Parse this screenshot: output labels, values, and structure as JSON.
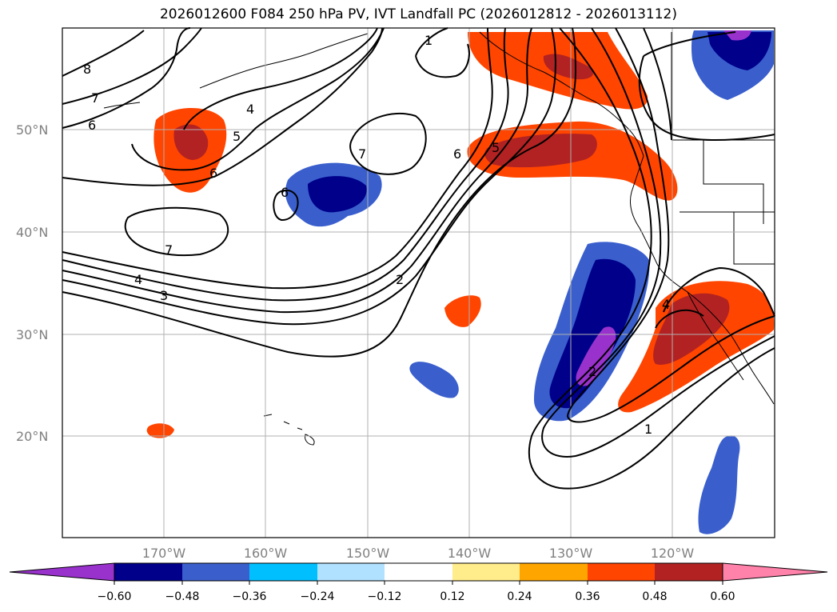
{
  "title": "2026012600 F084 250 hPa PV, IVT Landfall PC (2026012812 - 2026013112)",
  "map": {
    "lat_labels": [
      "50°N",
      "40°N",
      "30°N",
      "20°N"
    ],
    "lon_labels": [
      "170°W",
      "160°W",
      "150°W",
      "140°W",
      "130°W",
      "120°W"
    ],
    "contour_labels": [
      "8",
      "7",
      "6",
      "4",
      "5",
      "6",
      "7",
      "6",
      "7",
      "4",
      "3",
      "2",
      "1",
      "6",
      "5",
      "2",
      "4",
      "1"
    ],
    "fill_colors": {
      "neg_extreme": "#9932cc",
      "neg_060": "#00008b",
      "neg_048": "#3a5fcd",
      "neg_036": "#00bfff",
      "neg_024": "#b0e2ff",
      "pos_024": "#ffec8b",
      "pos_036": "#ffa500",
      "pos_048": "#ff4500",
      "pos_060": "#b22222",
      "pos_extreme": "#ff82ab"
    }
  },
  "colorbar": {
    "ticks": [
      "−0.60",
      "−0.48",
      "−0.36",
      "−0.24",
      "−0.12",
      "0.12",
      "0.24",
      "0.36",
      "0.48",
      "0.60"
    ],
    "colors": [
      "#9932cc",
      "#00008b",
      "#3a5fcd",
      "#00bfff",
      "#b0e2ff",
      "#ffffff",
      "#ffec8b",
      "#ffa500",
      "#ff4500",
      "#b22222",
      "#ff82ab"
    ]
  }
}
